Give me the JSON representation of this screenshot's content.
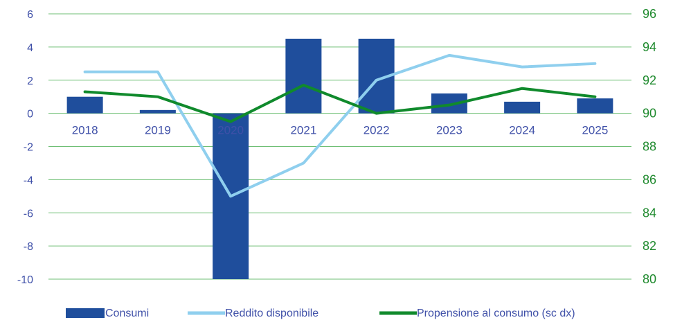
{
  "chart_data": {
    "type": "bar+line",
    "categories": [
      "2018",
      "2019",
      "2020",
      "2021",
      "2022",
      "2023",
      "2024",
      "2025"
    ],
    "y_left": {
      "ticks": [
        "6",
        "4",
        "2",
        "0",
        "-2",
        "-4",
        "-6",
        "-8",
        "-10"
      ],
      "lim": [
        -10,
        6
      ]
    },
    "y_right": {
      "ticks": [
        "96",
        "94",
        "92",
        "90",
        "88",
        "86",
        "84",
        "82",
        "80"
      ],
      "lim": [
        80,
        96
      ]
    },
    "grid": true,
    "legend_position": "bottom",
    "series": [
      {
        "name": "Consumi",
        "kind": "bar",
        "axis": "left",
        "color": "#1f4e9c",
        "values": [
          1.0,
          0.2,
          -10.0,
          4.5,
          4.5,
          1.2,
          0.7,
          0.9
        ]
      },
      {
        "name": "Reddito disponibile",
        "kind": "line",
        "axis": "left",
        "color": "#8fcfee",
        "values": [
          2.5,
          2.5,
          -5.0,
          -3.0,
          2.0,
          3.5,
          2.8,
          3.0
        ]
      },
      {
        "name": "Propensione al consumo (sc dx)",
        "kind": "line",
        "axis": "right",
        "color": "#108a2c",
        "values": [
          91.3,
          91.0,
          89.5,
          91.7,
          90.0,
          90.5,
          91.5,
          91.0
        ]
      }
    ],
    "colors": {
      "grid": "#6fbf75",
      "left_axis_text": "#3f50a8",
      "right_axis_text": "#1f8a2e"
    }
  }
}
